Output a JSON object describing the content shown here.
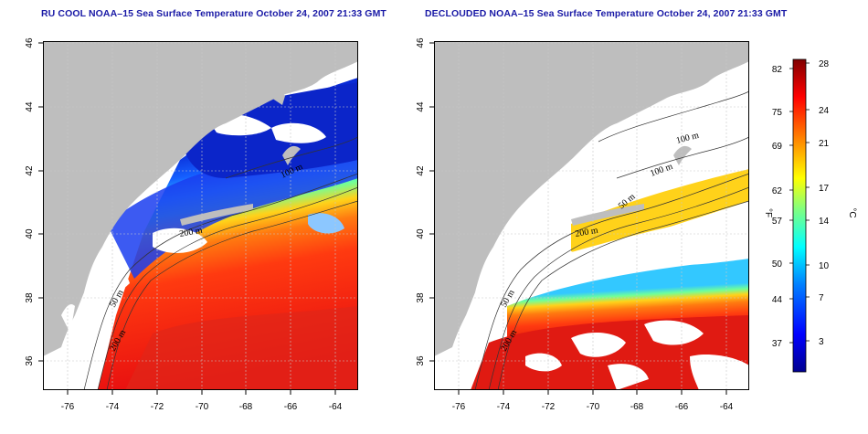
{
  "titles": {
    "left": "RU COOL NOAA–15 Sea Surface Temperature October 24, 2007 21:33 GMT",
    "right": "DECLOUDED NOAA–15 Sea Surface Temperature October 24, 2007 21:33 GMT"
  },
  "map": {
    "lon_ticks": [
      "-76",
      "-74",
      "-72",
      "-70",
      "-68",
      "-66",
      "-64"
    ],
    "lat_ticks": [
      "46",
      "44",
      "42",
      "40",
      "38",
      "36"
    ],
    "contour_labels": [
      "50 m",
      "100 m",
      "200 m"
    ],
    "land_color": "#bebebe",
    "nodata_color": "#ffffff"
  },
  "colorbar": {
    "fahrenheit_ticks": [
      "82",
      "75",
      "69",
      "62",
      "57",
      "50",
      "44",
      "37"
    ],
    "celsius_ticks": [
      "28",
      "24",
      "21",
      "17",
      "14",
      "10",
      "7",
      "3"
    ],
    "fahrenheit_label": "°F",
    "celsius_label": "°C",
    "colors": [
      "#00008f",
      "#0000ff",
      "#0080ff",
      "#00ffff",
      "#80ff80",
      "#ffff00",
      "#ff8000",
      "#ff0000",
      "#800000"
    ]
  }
}
